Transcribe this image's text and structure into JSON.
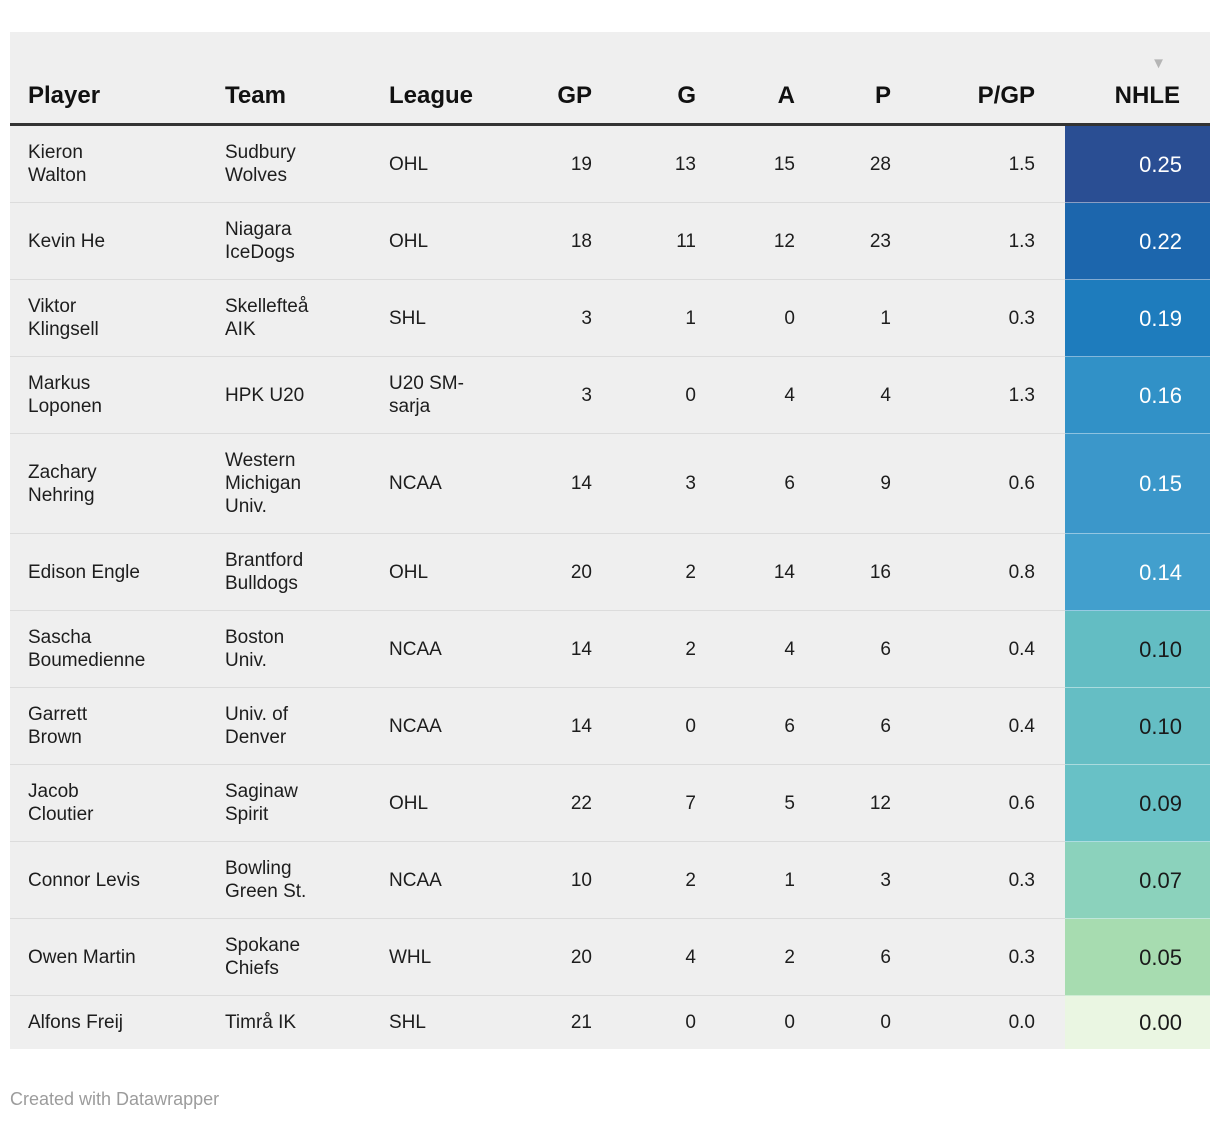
{
  "header": {
    "columns": [
      {
        "key": "player",
        "label": "Player",
        "align": "left"
      },
      {
        "key": "team",
        "label": "Team",
        "align": "left"
      },
      {
        "key": "league",
        "label": "League",
        "align": "left"
      },
      {
        "key": "gp",
        "label": "GP",
        "align": "right"
      },
      {
        "key": "g",
        "label": "G",
        "align": "right"
      },
      {
        "key": "a",
        "label": "A",
        "align": "right"
      },
      {
        "key": "p",
        "label": "P",
        "align": "right"
      },
      {
        "key": "pgp",
        "label": "P/GP",
        "align": "right"
      },
      {
        "key": "nhle",
        "label": "NHLE",
        "align": "right",
        "sorted": "desc"
      }
    ]
  },
  "rows": [
    {
      "player": "Kieron\nWalton",
      "team": "Sudbury\nWolves",
      "league": "OHL",
      "gp": "19",
      "g": "13",
      "a": "15",
      "p": "28",
      "pgp": "1.5",
      "nhle": "0.25",
      "nhle_bg": "#2a4e93",
      "nhle_fg": "#ffffff"
    },
    {
      "player": "Kevin He",
      "team": "Niagara\nIceDogs",
      "league": "OHL",
      "gp": "18",
      "g": "11",
      "a": "12",
      "p": "23",
      "pgp": "1.3",
      "nhle": "0.22",
      "nhle_bg": "#1c66ad",
      "nhle_fg": "#ffffff"
    },
    {
      "player": "Viktor\nKlingsell",
      "team": "Skellefteå\nAIK",
      "league": "SHL",
      "gp": "3",
      "g": "1",
      "a": "0",
      "p": "1",
      "pgp": "0.3",
      "nhle": "0.19",
      "nhle_bg": "#1e7cbd",
      "nhle_fg": "#ffffff"
    },
    {
      "player": "Markus\nLoponen",
      "team": "HPK U20",
      "league": "U20 SM-\nsarja",
      "gp": "3",
      "g": "0",
      "a": "4",
      "p": "4",
      "pgp": "1.3",
      "nhle": "0.16",
      "nhle_bg": "#3191c7",
      "nhle_fg": "#ffffff"
    },
    {
      "player": "Zachary\nNehring",
      "team": "Western\nMichigan\nUniv.",
      "league": "NCAA",
      "gp": "14",
      "g": "3",
      "a": "6",
      "p": "9",
      "pgp": "0.6",
      "nhle": "0.15",
      "nhle_bg": "#3b97ca",
      "nhle_fg": "#ffffff"
    },
    {
      "player": "Edison Engle",
      "team": "Brantford\nBulldogs",
      "league": "OHL",
      "gp": "20",
      "g": "2",
      "a": "14",
      "p": "16",
      "pgp": "0.8",
      "nhle": "0.14",
      "nhle_bg": "#429fcd",
      "nhle_fg": "#ffffff"
    },
    {
      "player": "Sascha\nBoumedienne",
      "team": "Boston\nUniv.",
      "league": "NCAA",
      "gp": "14",
      "g": "2",
      "a": "4",
      "p": "6",
      "pgp": "0.4",
      "nhle": "0.10",
      "nhle_bg": "#63bdc3",
      "nhle_fg": "#1a1a1a"
    },
    {
      "player": "Garrett\nBrown",
      "team": "Univ. of\nDenver",
      "league": "NCAA",
      "gp": "14",
      "g": "0",
      "a": "6",
      "p": "6",
      "pgp": "0.4",
      "nhle": "0.10",
      "nhle_bg": "#65bec4",
      "nhle_fg": "#1a1a1a"
    },
    {
      "player": "Jacob\nCloutier",
      "team": "Saginaw\nSpirit",
      "league": "OHL",
      "gp": "22",
      "g": "7",
      "a": "5",
      "p": "12",
      "pgp": "0.6",
      "nhle": "0.09",
      "nhle_bg": "#68c1c6",
      "nhle_fg": "#1a1a1a"
    },
    {
      "player": "Connor Levis",
      "team": "Bowling\nGreen St.",
      "league": "NCAA",
      "gp": "10",
      "g": "2",
      "a": "1",
      "p": "3",
      "pgp": "0.3",
      "nhle": "0.07",
      "nhle_bg": "#8bd2bc",
      "nhle_fg": "#1a1a1a"
    },
    {
      "player": "Owen Martin",
      "team": "Spokane\nChiefs",
      "league": "WHL",
      "gp": "20",
      "g": "4",
      "a": "2",
      "p": "6",
      "pgp": "0.3",
      "nhle": "0.05",
      "nhle_bg": "#a7dcb0",
      "nhle_fg": "#1a1a1a"
    },
    {
      "player": "Alfons Freij",
      "team": "Timrå IK",
      "league": "SHL",
      "gp": "21",
      "g": "0",
      "a": "0",
      "p": "0",
      "pgp": "0.0",
      "nhle": "0.00",
      "nhle_bg": "#eaf6e2",
      "nhle_fg": "#1a1a1a"
    }
  ],
  "footer": {
    "credit": "Created with Datawrapper"
  },
  "icons": {
    "sort_desc_icon": "▼"
  },
  "colors": {
    "page_bg": "#ffffff",
    "table_bg": "#efefef",
    "header_border": "#333333",
    "row_divider": "#dcdcdc",
    "sort_icon": "#b5b5b5",
    "credit_text": "#9c9c9c"
  }
}
